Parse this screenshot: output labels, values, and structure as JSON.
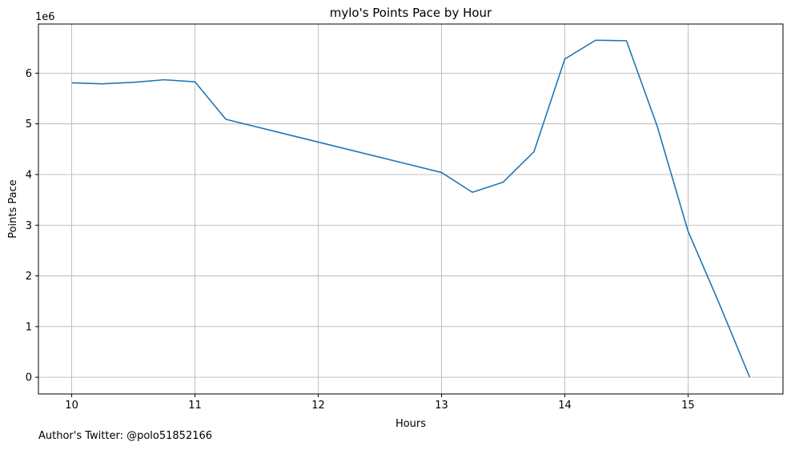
{
  "chart_data": {
    "type": "line",
    "title": "mylo's Points Pace by Hour",
    "xlabel": "Hours",
    "ylabel": "Points Pace",
    "y_offset_label": "1e6",
    "xlim": [
      9.73,
      15.77
    ],
    "ylim": [
      -0.33,
      6.97
    ],
    "x_ticks": [
      10,
      11,
      12,
      13,
      14,
      15
    ],
    "x_tick_labels": [
      "10",
      "11",
      "12",
      "13",
      "14",
      "15"
    ],
    "y_ticks": [
      0,
      1,
      2,
      3,
      4,
      5,
      6
    ],
    "y_tick_labels": [
      "0",
      "1",
      "2",
      "3",
      "4",
      "5",
      "6"
    ],
    "grid": true,
    "series": [
      {
        "color": "#1f77b4",
        "x": [
          10,
          10.25,
          10.5,
          10.75,
          11,
          11.25,
          13,
          13.25,
          13.5,
          13.75,
          14,
          14.25,
          14.5,
          14.75,
          15,
          15.25,
          15.5
        ],
        "y": [
          5.81,
          5.79,
          5.82,
          5.87,
          5.83,
          5.09,
          4.04,
          3.65,
          3.85,
          4.45,
          6.28,
          6.65,
          6.64,
          4.95,
          2.88,
          1.47,
          0.0
        ]
      }
    ]
  },
  "footer": {
    "text": "Author's Twitter: @polo51852166"
  }
}
